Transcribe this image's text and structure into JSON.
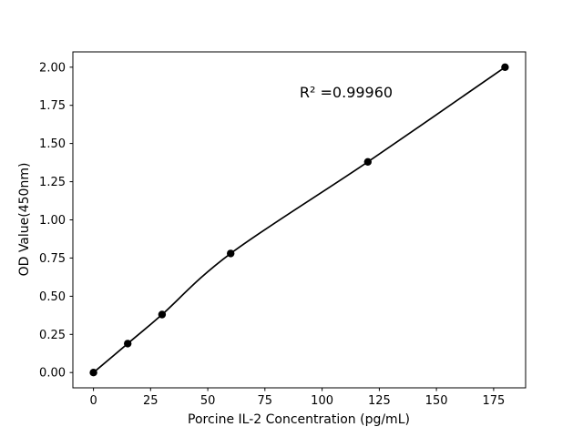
{
  "figure": {
    "background": "#ffffff"
  },
  "chart_data": {
    "type": "scatter",
    "title": "",
    "xlabel": "Porcine IL-2 Concentration (pg/mL)",
    "ylabel": "OD Value(450nm)",
    "annotation": "R² =0.99960",
    "r_squared": "0.99960",
    "x": [
      0,
      15,
      30,
      60,
      120,
      180
    ],
    "y": [
      0.0,
      0.19,
      0.38,
      0.78,
      1.38,
      2.0
    ],
    "xticks": [
      0,
      25,
      50,
      75,
      100,
      125,
      150,
      175
    ],
    "ytick_values": [
      0.0,
      0.25,
      0.5,
      0.75,
      1.0,
      1.25,
      1.5,
      1.75,
      2.0
    ],
    "ytick_labels": [
      "0.00",
      "0.25",
      "0.50",
      "0.75",
      "1.00",
      "1.25",
      "1.50",
      "1.75",
      "2.00"
    ],
    "xlim": [
      -9,
      189
    ],
    "ylim": [
      -0.1,
      2.1
    ],
    "grid": false,
    "legend": null,
    "curve_style": "smooth polynomial fit through points",
    "line_color": "#000000",
    "marker_color": "#000000",
    "axis_color": "#000000"
  }
}
